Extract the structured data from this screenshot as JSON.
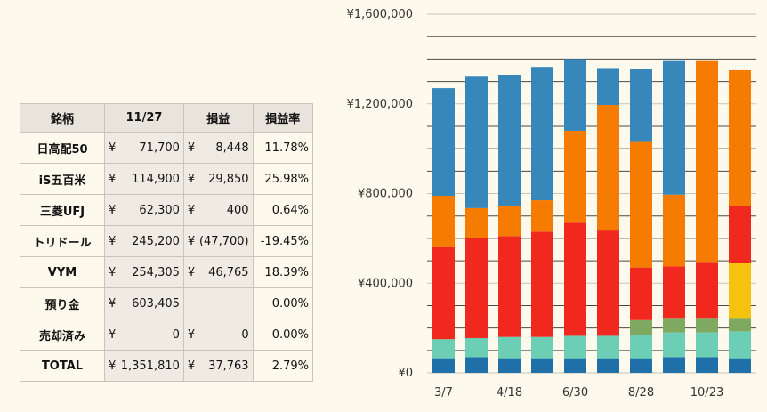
{
  "table": {
    "headers": [
      "銘柄",
      "11/27",
      "損益",
      "損益率"
    ],
    "currency": "¥",
    "rows": [
      {
        "name": "日高配50",
        "value": "71,700",
        "pl": "8,448",
        "rate": "11.78%"
      },
      {
        "name": "iS五百米",
        "value": "114,900",
        "pl": "29,850",
        "rate": "25.98%"
      },
      {
        "name": "三菱UFJ",
        "value": "62,300",
        "pl": "400",
        "rate": "0.64%"
      },
      {
        "name": "トリドール",
        "value": "245,200",
        "pl": "(47,700)",
        "rate": "-19.45%"
      },
      {
        "name": "VYM",
        "value": "254,305",
        "pl": "46,765",
        "rate": "18.39%"
      },
      {
        "name": "預り金",
        "value": "603,405",
        "pl": "",
        "rate": "0.00%"
      },
      {
        "name": "売却済み",
        "value": "0",
        "pl": "0",
        "rate": "0.00%"
      },
      {
        "name": "TOTAL",
        "value": "1,351,810",
        "pl": "37,763",
        "rate": "2.79%"
      }
    ]
  },
  "chart_data": {
    "type": "bar",
    "stacked": true,
    "ylim": [
      0,
      1600000
    ],
    "yticks": [
      0,
      400000,
      800000,
      1200000,
      1600000
    ],
    "ytick_labels": [
      "¥0",
      "¥400,000",
      "¥800,000",
      "¥1,200,000",
      "¥1,600,000"
    ],
    "categories": [
      "3/7",
      "",
      "4/18",
      "",
      "6/30",
      "",
      "8/28",
      "",
      "10/23",
      ""
    ],
    "grid": true,
    "series": [
      {
        "color": "#1f6fa8",
        "values": [
          65000,
          70000,
          65000,
          65000,
          65000,
          65000,
          65000,
          70000,
          70000,
          65000
        ]
      },
      {
        "color": "#6ccfb5",
        "values": [
          85000,
          85000,
          95000,
          95000,
          100000,
          100000,
          105000,
          110000,
          110000,
          120000
        ]
      },
      {
        "color": "#7fa860",
        "values": [
          0,
          0,
          0,
          0,
          0,
          0,
          65000,
          65000,
          65000,
          60000
        ]
      },
      {
        "color": "#f4c20f",
        "values": [
          0,
          0,
          0,
          0,
          0,
          0,
          0,
          0,
          0,
          245000
        ]
      },
      {
        "color": "#f1281e",
        "values": [
          410000,
          445000,
          450000,
          470000,
          505000,
          470000,
          235000,
          230000,
          250000,
          255000
        ]
      },
      {
        "color": "#f57c00",
        "values": [
          230000,
          135000,
          135000,
          140000,
          410000,
          560000,
          560000,
          320000,
          900000,
          605000
        ]
      },
      {
        "color": "#3887bb",
        "values": [
          480000,
          590000,
          585000,
          595000,
          320000,
          165000,
          325000,
          600000,
          0,
          0
        ]
      }
    ]
  }
}
